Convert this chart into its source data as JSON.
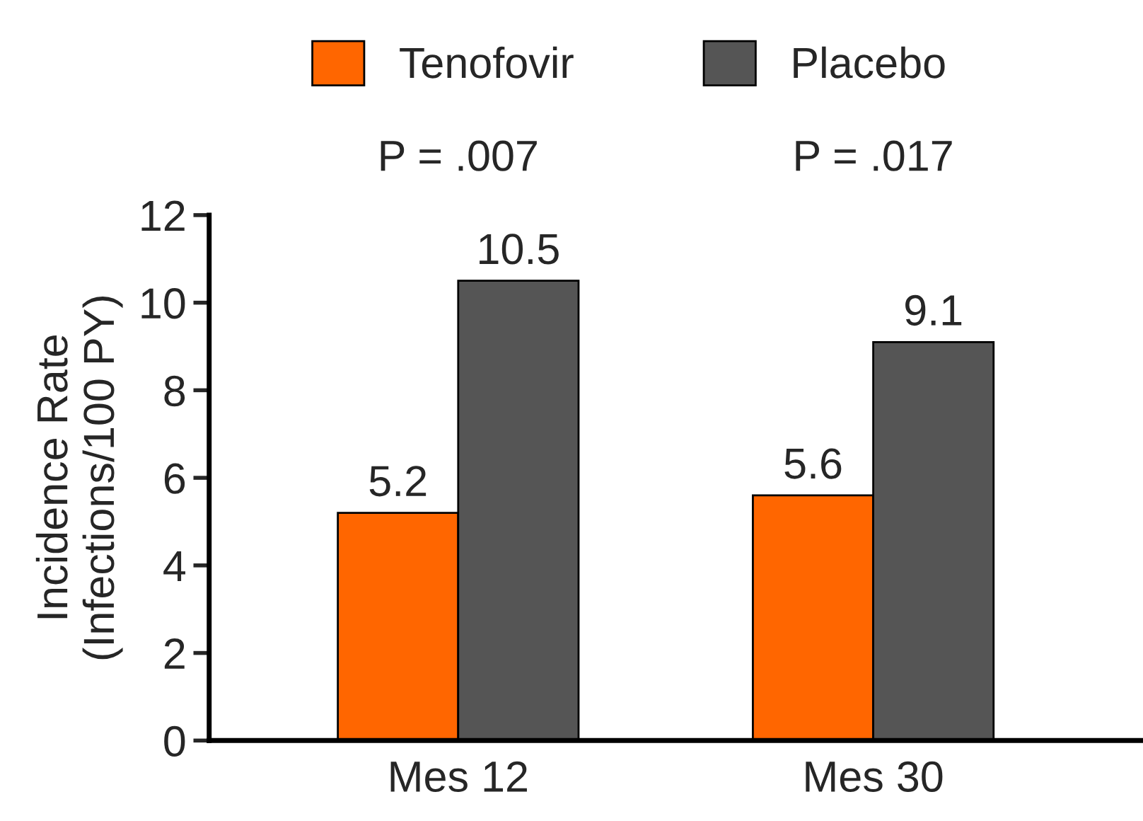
{
  "chart_data": {
    "type": "bar",
    "ylabel": "Incidence Rate\n(Infections/100 PY)",
    "categories": [
      "Mes 12",
      "Mes 30"
    ],
    "series": [
      {
        "name": "Tenofovir",
        "color": "#ff6600",
        "values": [
          5.2,
          5.6
        ]
      },
      {
        "name": "Placebo",
        "color": "#555555",
        "values": [
          10.5,
          9.1
        ]
      }
    ],
    "ylim": [
      0,
      12
    ],
    "yticks": [
      0,
      2,
      4,
      6,
      8,
      10,
      12
    ],
    "data_labels": true,
    "grid": false,
    "legend": "top",
    "annotations": [
      "P = .007",
      "P = .017"
    ]
  }
}
